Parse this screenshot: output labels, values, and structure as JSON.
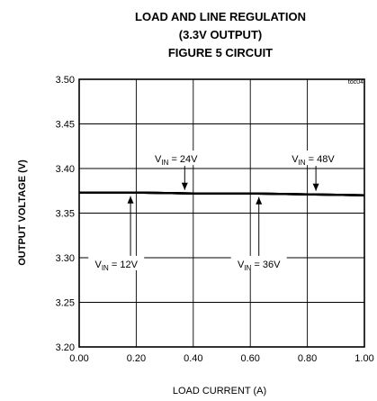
{
  "chart_data": {
    "type": "line",
    "title_lines": [
      "LOAD AND LINE REGULATION",
      "(3.3V OUTPUT)",
      "FIGURE 5 CIRCUIT"
    ],
    "figure_code": "toc04",
    "xlabel": "LOAD CURRENT (A)",
    "ylabel": "OUTPUT VOLTAGE (V)",
    "xlim": [
      0,
      1
    ],
    "ylim": [
      3.2,
      3.5
    ],
    "x_ticks": [
      "0.00",
      "0.20",
      "0.40",
      "0.60",
      "0.80",
      "1.00"
    ],
    "y_ticks": [
      "3.20",
      "3.25",
      "3.30",
      "3.35",
      "3.40",
      "3.45",
      "3.50"
    ],
    "grid": true,
    "series": [
      {
        "name": "V_IN = 12V",
        "x": [
          0,
          0.2,
          0.4,
          0.6,
          0.8,
          1.0
        ],
        "y": [
          3.373,
          3.373,
          3.372,
          3.372,
          3.371,
          3.37
        ]
      },
      {
        "name": "V_IN = 24V",
        "x": [
          0,
          0.2,
          0.4,
          0.6,
          0.8,
          1.0
        ],
        "y": [
          3.373,
          3.373,
          3.372,
          3.372,
          3.371,
          3.37
        ]
      },
      {
        "name": "V_IN = 36V",
        "x": [
          0,
          0.2,
          0.4,
          0.6,
          0.8,
          1.0
        ],
        "y": [
          3.373,
          3.373,
          3.372,
          3.372,
          3.371,
          3.37
        ]
      },
      {
        "name": "V_IN = 48V",
        "x": [
          0,
          0.2,
          0.4,
          0.6,
          0.8,
          1.0
        ],
        "y": [
          3.373,
          3.373,
          3.372,
          3.372,
          3.371,
          3.37
        ]
      }
    ],
    "annotations": [
      {
        "label_main": "V",
        "label_sub": "IN",
        "label_rest": " = 12V",
        "target_x": 0.18,
        "target_y": 3.373,
        "text_x": 0.13,
        "text_y": 3.293
      },
      {
        "label_main": "V",
        "label_sub": "IN",
        "label_rest": " = 24V",
        "target_x": 0.37,
        "target_y": 3.372,
        "text_x": 0.34,
        "text_y": 3.411
      },
      {
        "label_main": "V",
        "label_sub": "IN",
        "label_rest": " = 36V",
        "target_x": 0.63,
        "target_y": 3.372,
        "text_x": 0.63,
        "text_y": 3.293
      },
      {
        "label_main": "V",
        "label_sub": "IN",
        "label_rest": " = 48V",
        "target_x": 0.83,
        "target_y": 3.371,
        "text_x": 0.82,
        "text_y": 3.411
      }
    ]
  }
}
